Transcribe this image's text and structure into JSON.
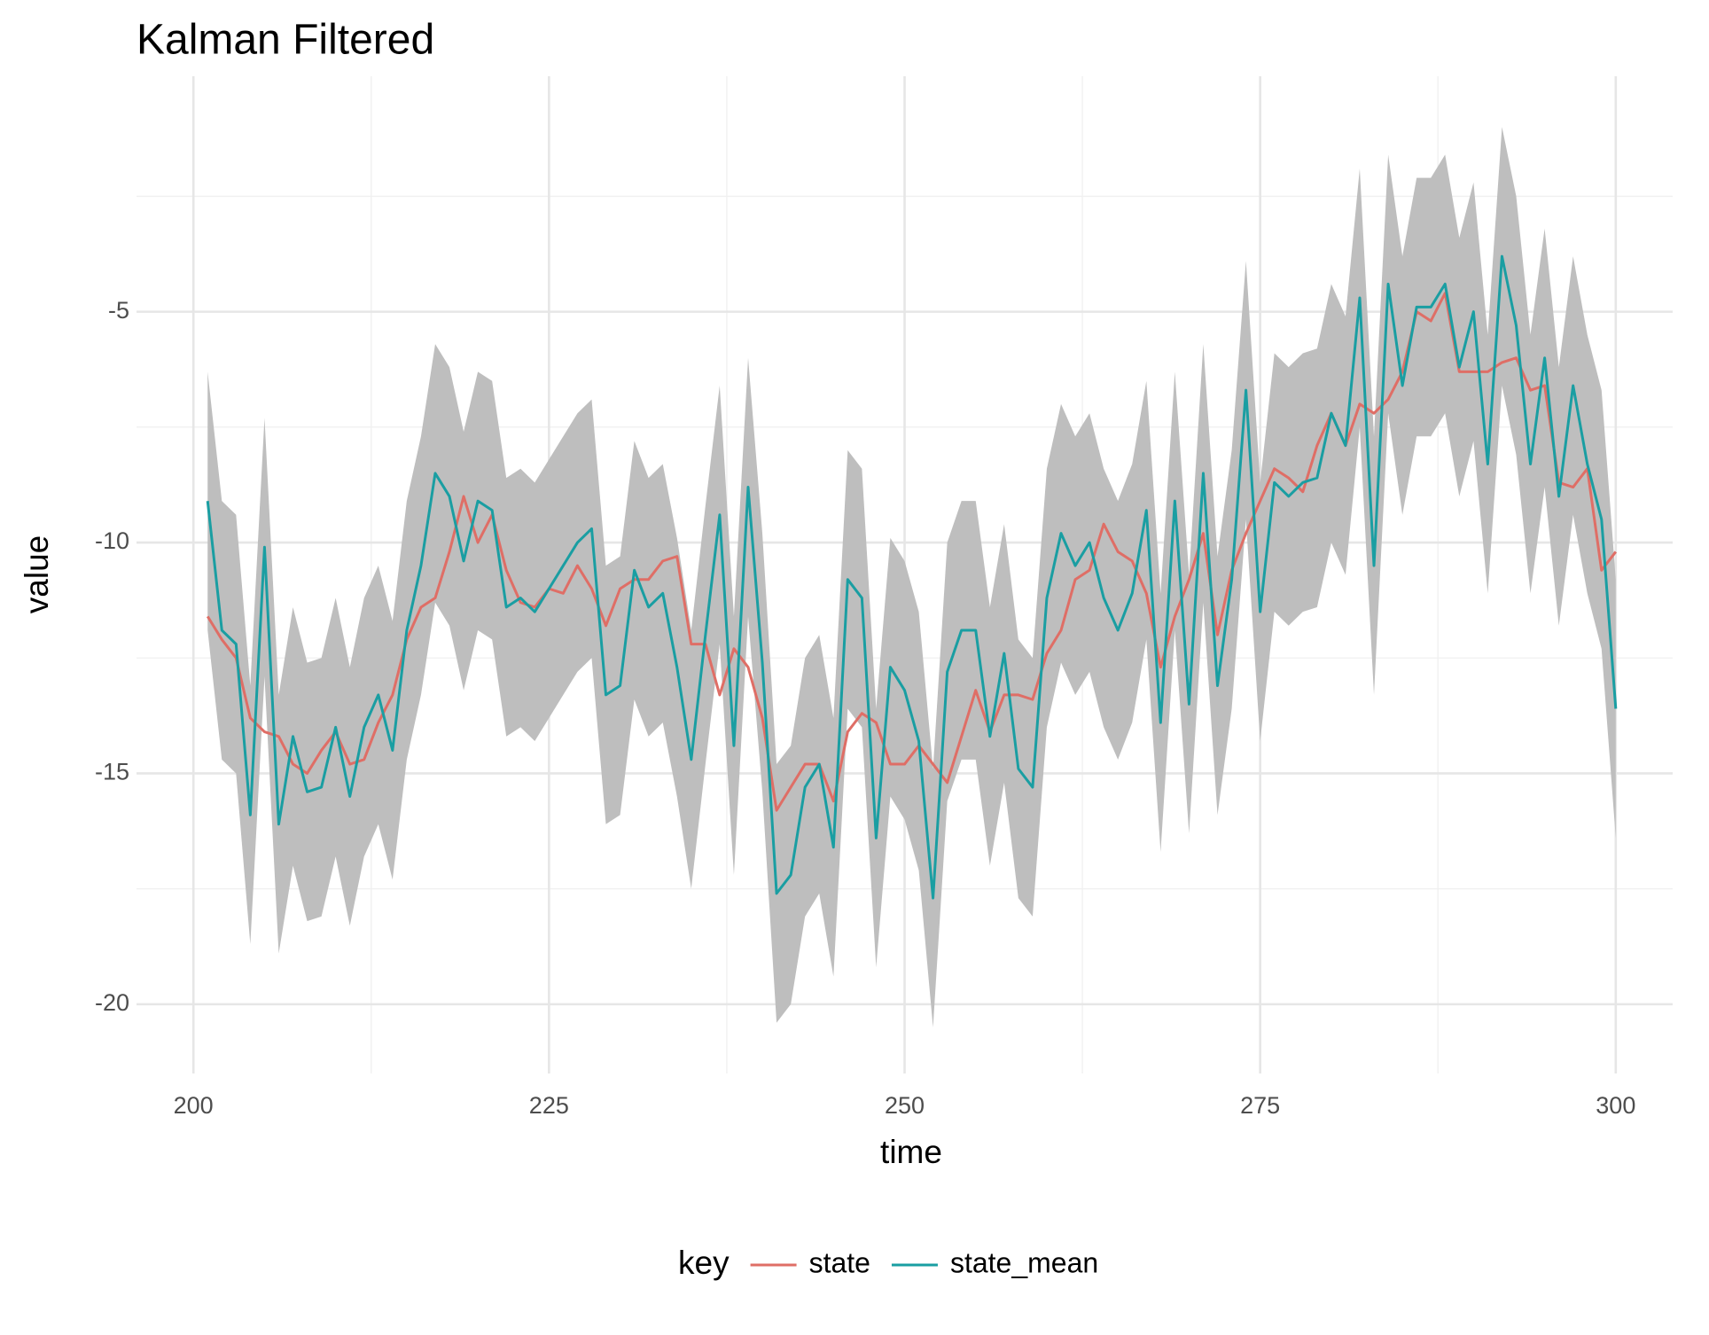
{
  "chart_data": {
    "type": "line",
    "title": "Kalman Filtered",
    "x_label": "time",
    "y_label": "value",
    "legend_title": "key",
    "legend_position": "bottom",
    "grid": true,
    "x": [
      201,
      202,
      203,
      204,
      205,
      206,
      207,
      208,
      209,
      210,
      211,
      212,
      213,
      214,
      215,
      216,
      217,
      218,
      219,
      220,
      221,
      222,
      223,
      224,
      225,
      226,
      227,
      228,
      229,
      230,
      231,
      232,
      233,
      234,
      235,
      236,
      237,
      238,
      239,
      240,
      241,
      242,
      243,
      244,
      245,
      246,
      247,
      248,
      249,
      250,
      251,
      252,
      253,
      254,
      255,
      256,
      257,
      258,
      259,
      260,
      261,
      262,
      263,
      264,
      265,
      266,
      267,
      268,
      269,
      270,
      271,
      272,
      273,
      274,
      275,
      276,
      277,
      278,
      279,
      280,
      281,
      282,
      283,
      284,
      285,
      286,
      287,
      288,
      289,
      290,
      291,
      292,
      293,
      294,
      295,
      296,
      297,
      298,
      299,
      300
    ],
    "series": [
      {
        "name": "state",
        "color": "#df6e66",
        "values": [
          -11.6,
          -12.1,
          -12.5,
          -13.8,
          -14.1,
          -14.2,
          -14.8,
          -15.0,
          -14.5,
          -14.1,
          -14.8,
          -14.7,
          -13.9,
          -13.3,
          -12.1,
          -11.4,
          -11.2,
          -10.2,
          -9.0,
          -10.0,
          -9.4,
          -10.6,
          -11.3,
          -11.4,
          -11.0,
          -11.1,
          -10.5,
          -11.0,
          -11.8,
          -11.0,
          -10.8,
          -10.8,
          -10.4,
          -10.3,
          -12.2,
          -12.2,
          -13.3,
          -12.3,
          -12.7,
          -13.8,
          -15.8,
          -15.3,
          -14.8,
          -14.8,
          -15.6,
          -14.1,
          -13.7,
          -13.9,
          -14.8,
          -14.8,
          -14.4,
          -14.8,
          -15.2,
          -14.2,
          -13.2,
          -14.1,
          -13.3,
          -13.3,
          -13.4,
          -12.4,
          -11.9,
          -10.8,
          -10.6,
          -9.6,
          -10.2,
          -10.4,
          -11.1,
          -12.7,
          -11.6,
          -10.8,
          -9.8,
          -12.0,
          -10.6,
          -9.8,
          -9.1,
          -8.4,
          -8.6,
          -8.9,
          -7.9,
          -7.2,
          -7.9,
          -7.0,
          -7.2,
          -6.9,
          -6.3,
          -5.0,
          -5.2,
          -4.6,
          -6.3,
          -6.3,
          -6.3,
          -6.1,
          -6.0,
          -6.7,
          -6.6,
          -8.7,
          -8.8,
          -8.4,
          -10.6,
          -10.2
        ]
      },
      {
        "name": "state_mean",
        "color": "#1a9ea2",
        "values": [
          -9.1,
          -11.9,
          -12.2,
          -15.9,
          -10.1,
          -16.1,
          -14.2,
          -15.4,
          -15.3,
          -14.0,
          -15.5,
          -14.0,
          -13.3,
          -14.5,
          -11.9,
          -10.5,
          -8.5,
          -9.0,
          -10.4,
          -9.1,
          -9.3,
          -11.4,
          -11.2,
          -11.5,
          -11.0,
          -10.5,
          -10.0,
          -9.7,
          -13.3,
          -13.1,
          -10.6,
          -11.4,
          -11.1,
          -12.7,
          -14.7,
          -12.0,
          -9.4,
          -14.4,
          -8.8,
          -12.6,
          -17.6,
          -17.2,
          -15.3,
          -14.8,
          -16.6,
          -10.8,
          -11.2,
          -16.4,
          -12.7,
          -13.2,
          -14.3,
          -17.7,
          -12.8,
          -11.9,
          -11.9,
          -14.2,
          -12.4,
          -14.9,
          -15.3,
          -11.2,
          -9.8,
          -10.5,
          -10.0,
          -11.2,
          -11.9,
          -11.1,
          -9.3,
          -13.9,
          -9.1,
          -13.5,
          -8.5,
          -13.1,
          -10.8,
          -6.7,
          -11.5,
          -8.7,
          -9.0,
          -8.7,
          -8.6,
          -7.2,
          -7.9,
          -4.7,
          -10.5,
          -4.4,
          -6.6,
          -4.9,
          -4.9,
          -4.4,
          -6.2,
          -5.0,
          -8.3,
          -3.8,
          -5.3,
          -8.3,
          -6.0,
          -9.0,
          -6.6,
          -8.3,
          -9.5,
          -13.6
        ]
      }
    ],
    "ribbon": {
      "color": "#bebebe",
      "upper": [
        -6.3,
        -9.1,
        -9.4,
        -13.1,
        -7.3,
        -13.3,
        -11.4,
        -12.6,
        -12.5,
        -11.2,
        -12.7,
        -11.2,
        -10.5,
        -11.7,
        -9.1,
        -7.7,
        -5.7,
        -6.2,
        -7.6,
        -6.3,
        -6.5,
        -8.6,
        -8.4,
        -8.7,
        -8.2,
        -7.7,
        -7.2,
        -6.9,
        -10.5,
        -10.3,
        -7.8,
        -8.6,
        -8.3,
        -9.9,
        -11.9,
        -9.2,
        -6.6,
        -11.6,
        -6.0,
        -9.8,
        -14.8,
        -14.4,
        -12.5,
        -12.0,
        -13.8,
        -8.0,
        -8.4,
        -13.6,
        -9.9,
        -10.4,
        -11.5,
        -14.9,
        -10.0,
        -9.1,
        -9.1,
        -11.4,
        -9.6,
        -12.1,
        -12.5,
        -8.4,
        -7.0,
        -7.7,
        -7.2,
        -8.4,
        -9.1,
        -8.3,
        -6.5,
        -11.1,
        -6.3,
        -10.7,
        -5.7,
        -10.3,
        -8.0,
        -3.9,
        -8.7,
        -5.9,
        -6.2,
        -5.9,
        -5.8,
        -4.4,
        -5.1,
        -1.9,
        -7.7,
        -1.6,
        -3.8,
        -2.1,
        -2.1,
        -1.6,
        -3.4,
        -2.2,
        -5.5,
        -1.0,
        -2.5,
        -5.5,
        -3.2,
        -6.2,
        -3.8,
        -5.5,
        -6.7,
        -10.8
      ],
      "lower": [
        -11.9,
        -14.7,
        -15.0,
        -18.7,
        -12.9,
        -18.9,
        -17.0,
        -18.2,
        -18.1,
        -16.8,
        -18.3,
        -16.8,
        -16.1,
        -17.3,
        -14.7,
        -13.3,
        -11.3,
        -11.8,
        -13.2,
        -11.9,
        -12.1,
        -14.2,
        -14.0,
        -14.3,
        -13.8,
        -13.3,
        -12.8,
        -12.5,
        -16.1,
        -15.9,
        -13.4,
        -14.2,
        -13.9,
        -15.5,
        -17.5,
        -14.8,
        -12.2,
        -17.2,
        -11.6,
        -15.4,
        -20.4,
        -20.0,
        -18.1,
        -17.6,
        -19.4,
        -13.6,
        -14.0,
        -19.2,
        -15.5,
        -16.0,
        -17.1,
        -20.5,
        -15.6,
        -14.7,
        -14.7,
        -17.0,
        -15.2,
        -17.7,
        -18.1,
        -14.0,
        -12.6,
        -13.3,
        -12.8,
        -14.0,
        -14.7,
        -13.9,
        -12.1,
        -16.7,
        -11.9,
        -16.3,
        -11.3,
        -15.9,
        -13.6,
        -9.5,
        -14.3,
        -11.5,
        -11.8,
        -11.5,
        -11.4,
        -10.0,
        -10.7,
        -7.5,
        -13.3,
        -7.2,
        -9.4,
        -7.7,
        -7.7,
        -7.2,
        -9.0,
        -7.8,
        -11.1,
        -6.6,
        -8.1,
        -11.1,
        -8.8,
        -11.8,
        -9.4,
        -11.1,
        -12.3,
        -16.4
      ]
    },
    "xlim": [
      196,
      304
    ],
    "ylim": [
      -21.5,
      0.1
    ],
    "xticks": [
      200,
      225,
      250,
      275,
      300
    ],
    "yticks": [
      -20,
      -15,
      -10,
      -5
    ],
    "xminorticks": [
      212.5,
      237.5,
      262.5,
      287.5
    ],
    "yminorticks": [
      -17.5,
      -12.5,
      -7.5,
      -2.5
    ]
  }
}
